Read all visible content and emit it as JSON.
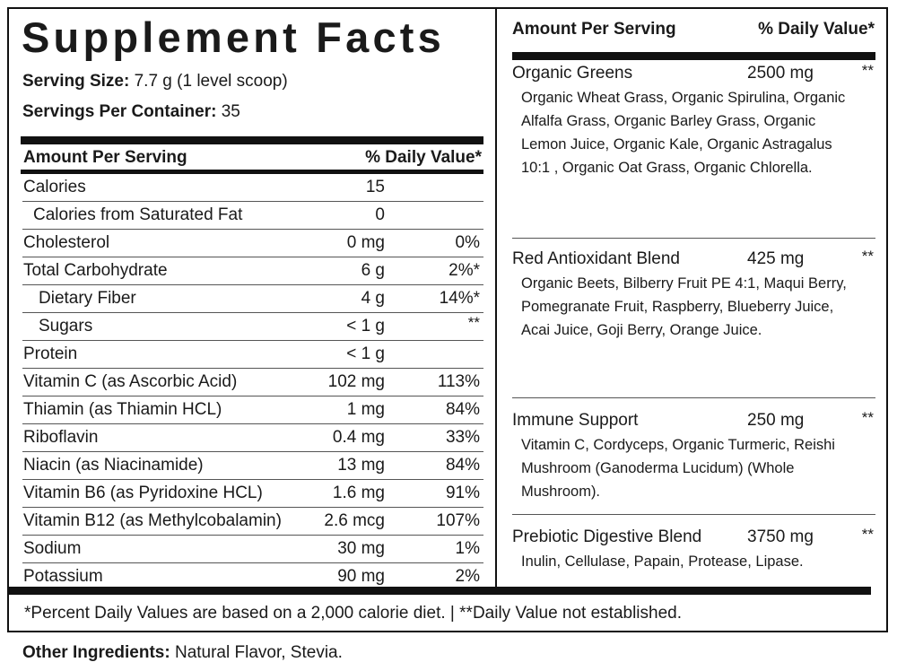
{
  "title": "Supplement Facts",
  "serving_size": {
    "label": "Serving Size:",
    "value": "7.7 g (1 level scoop)"
  },
  "servings_per_container": {
    "label": "Servings Per Container:",
    "value": "35"
  },
  "table_header": {
    "amount_label": "Amount Per Serving",
    "dv_label": "% Daily Value*"
  },
  "nutrients": [
    {
      "name": "Calories",
      "amount": "15",
      "dv": ""
    },
    {
      "name": "Calories from Saturated Fat",
      "amount": "0",
      "dv": ""
    },
    {
      "name": "Cholesterol",
      "amount": "0 mg",
      "dv": "0%"
    },
    {
      "name": "Total Carbohydrate",
      "amount": "6 g",
      "dv": "2%*"
    },
    {
      "name": "Dietary Fiber",
      "amount": "4 g",
      "dv": "14%*"
    },
    {
      "name": "Sugars",
      "amount": "< 1 g",
      "dv": "**"
    },
    {
      "name": "Protein",
      "amount": "< 1 g",
      "dv": ""
    },
    {
      "name": "Vitamin C (as Ascorbic Acid)",
      "amount": "102 mg",
      "dv": "113%"
    },
    {
      "name": "Thiamin (as Thiamin HCL)",
      "amount": "1 mg",
      "dv": "84%"
    },
    {
      "name": "Riboflavin",
      "amount": "0.4 mg",
      "dv": "33%"
    },
    {
      "name": "Niacin (as Niacinamide)",
      "amount": "13 mg",
      "dv": "84%"
    },
    {
      "name": "Vitamin B6 (as Pyridoxine HCL)",
      "amount": "1.6 mg",
      "dv": "91%"
    },
    {
      "name": "Vitamin B12 (as Methylcobalamin)",
      "amount": "2.6 mcg",
      "dv": "107%"
    },
    {
      "name": "Sodium",
      "amount": "30 mg",
      "dv": "1%"
    },
    {
      "name": "Potassium",
      "amount": "90 mg",
      "dv": "2%"
    }
  ],
  "right_header": {
    "amount_label": "Amount Per Serving",
    "dv_label": "% Daily Value*"
  },
  "blends": [
    {
      "name": "Organic Greens",
      "amount": "2500 mg",
      "dv": "**",
      "ingredients": "Organic Wheat Grass, Organic Spirulina, Organic Alfalfa Grass, Organic Barley Grass, Organic Lemon Juice, Organic Kale, Organic Astragalus 10:1 , Organic Oat Grass, Organic Chlorella."
    },
    {
      "name": "Red Antioxidant Blend",
      "amount": "425 mg",
      "dv": "**",
      "ingredients": "Organic Beets, Bilberry Fruit PE 4:1, Maqui Berry, Pomegranate Fruit, Raspberry, Blueberry Juice, Acai Juice, Goji Berry, Orange Juice."
    },
    {
      "name": "Immune Support",
      "amount": "250 mg",
      "dv": "**",
      "ingredients": "Vitamin C, Cordyceps, Organic Turmeric, Reishi Mushroom (Ganoderma Lucidum) (Whole Mushroom)."
    },
    {
      "name": "Prebiotic Digestive Blend",
      "amount": "3750 mg",
      "dv": "**",
      "ingredients": "Inulin, Cellulase, Papain, Protease, Lipase."
    }
  ],
  "footnote": "*Percent Daily Values are based on a 2,000 calorie diet.  |  **Daily Value not established.",
  "other_ingredients": {
    "label": "Other Ingredients:",
    "value": "Natural Flavor, Stevia."
  }
}
